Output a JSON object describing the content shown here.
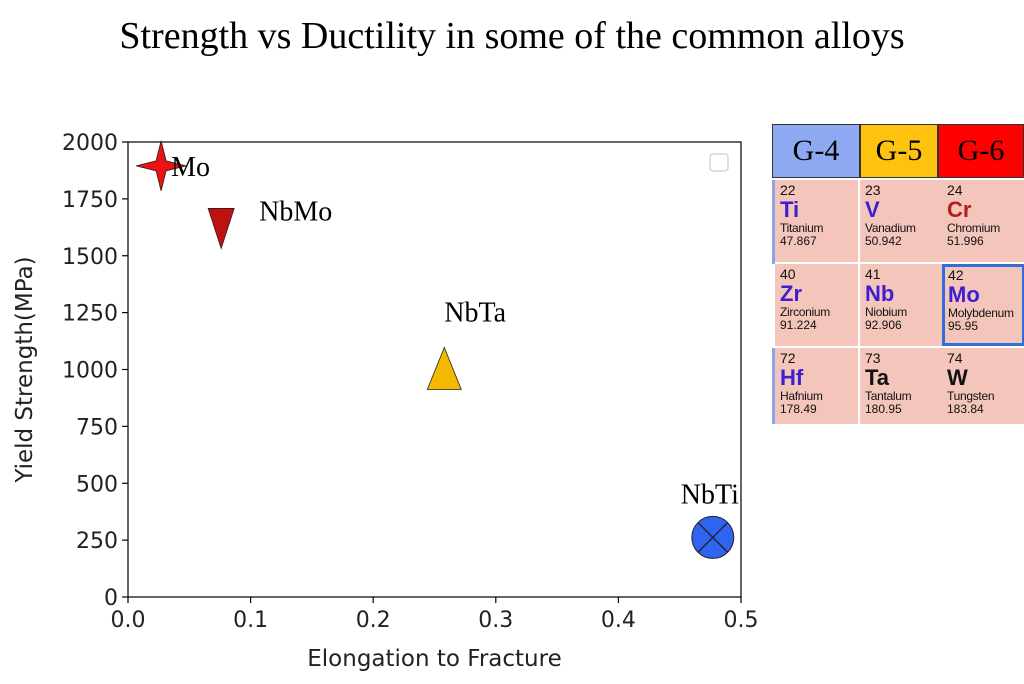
{
  "page_title": "Strength vs Ductility in some of the common alloys",
  "chart_data": {
    "type": "scatter",
    "title": "",
    "xlabel": "Elongation to Fracture",
    "ylabel": "Yield Strength(MPa)",
    "xlim": [
      0.0,
      0.5
    ],
    "ylim": [
      0,
      2000
    ],
    "xticks": [
      "0.0",
      "0.1",
      "0.2",
      "0.3",
      "0.4",
      "0.5"
    ],
    "xtick_values": [
      0.0,
      0.1,
      0.2,
      0.3,
      0.4,
      0.5
    ],
    "yticks": [
      "0",
      "250",
      "500",
      "750",
      "1000",
      "1250",
      "1500",
      "1750",
      "2000"
    ],
    "ytick_values": [
      0,
      250,
      500,
      750,
      1000,
      1250,
      1500,
      1750,
      2000
    ],
    "grid": false,
    "legend": "top-right (empty)",
    "points": [
      {
        "label": "Mo",
        "x": 0.027,
        "y": 1895,
        "marker": "star4",
        "color": "#ee1111"
      },
      {
        "label": "NbMo",
        "x": 0.076,
        "y": 1620,
        "marker": "triangle-down",
        "color": "#c01010"
      },
      {
        "label": "NbTa",
        "x": 0.258,
        "y": 1000,
        "marker": "triangle-up",
        "color": "#f5b800"
      },
      {
        "label": "NbTi",
        "x": 0.477,
        "y": 262,
        "marker": "circle-x",
        "color": "#2f64f0"
      }
    ]
  },
  "periodic_table": {
    "groups": [
      {
        "label": "G-4",
        "color": "#8fa8f2"
      },
      {
        "label": "G-5",
        "color": "#ffc20e"
      },
      {
        "label": "G-6",
        "color": "#ff0000"
      }
    ],
    "elements": [
      {
        "number": "22",
        "symbol": "Ti",
        "name": "Titanium",
        "mass": "47.867"
      },
      {
        "number": "23",
        "symbol": "V",
        "name": "Vanadium",
        "mass": "50.942"
      },
      {
        "number": "24",
        "symbol": "Cr",
        "name": "Chromium",
        "mass": "51.996"
      },
      {
        "number": "40",
        "symbol": "Zr",
        "name": "Zirconium",
        "mass": "91.224"
      },
      {
        "number": "41",
        "symbol": "Nb",
        "name": "Niobium",
        "mass": "92.906"
      },
      {
        "number": "42",
        "symbol": "Mo",
        "name": "Molybdenum",
        "mass": "95.95"
      },
      {
        "number": "72",
        "symbol": "Hf",
        "name": "Hafnium",
        "mass": "178.49"
      },
      {
        "number": "73",
        "symbol": "Ta",
        "name": "Tantalum",
        "mass": "180.95"
      },
      {
        "number": "74",
        "symbol": "W",
        "name": "Tungsten",
        "mass": "183.84"
      }
    ]
  }
}
